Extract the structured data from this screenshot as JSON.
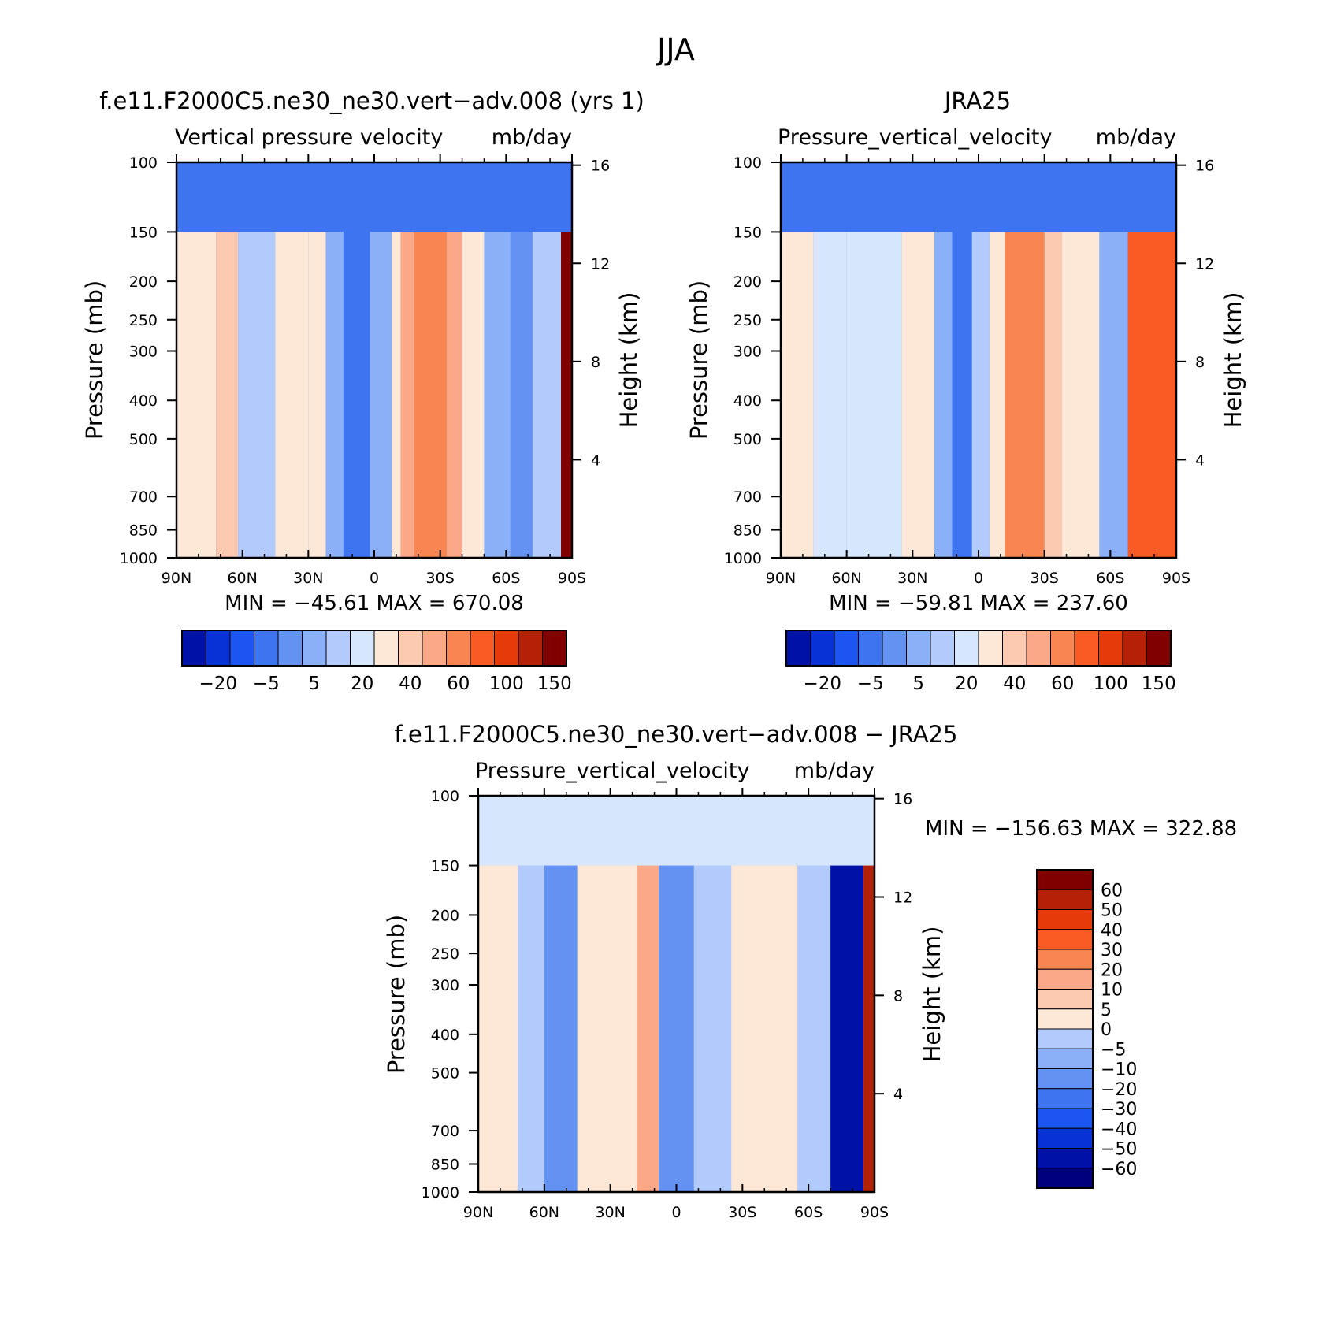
{
  "figure": {
    "title": "JJA"
  },
  "colors": {
    "blue_scale": [
      "#00007e",
      "#0011a8",
      "#0932d6",
      "#1d55f2",
      "#3e74f0",
      "#6492f2",
      "#8bb0f8",
      "#b2cbfc",
      "#d6e6fd"
    ],
    "red_scale": [
      "#fde8d8",
      "#fccab0",
      "#fba889",
      "#f98552",
      "#fa5a24",
      "#e63a0b",
      "#b52107",
      "#800000"
    ]
  },
  "chart_data": [
    {
      "type": "heatmap",
      "title": "f.e11.F2000C5.ne30_ne30.vert−adv.008 (yrs 1)",
      "subtitle": "Vertical pressure velocity",
      "units": "mb/day",
      "ylabel": "Pressure (mb)",
      "y2label": "Height (km)",
      "xticks": [
        "90N",
        "60N",
        "30N",
        "0",
        "30S",
        "60S",
        "90S"
      ],
      "yticks": [
        "100",
        "150",
        "200",
        "250",
        "300",
        "400",
        "500",
        "700",
        "850",
        "1000"
      ],
      "y2ticks": [
        "16",
        "12",
        "8",
        "4"
      ],
      "xlim": [
        90,
        -90
      ],
      "ylim": [
        1000,
        100
      ],
      "y_scale": "log",
      "stats": "MIN = −45.61   MAX = 670.08",
      "colorbar": {
        "orientation": "horizontal",
        "labels": [
          "−20",
          "−5",
          "5",
          "20",
          "40",
          "60",
          "100",
          "150"
        ]
      },
      "bands": [
        {
          "lat": [
            90,
            72
          ],
          "value": 2
        },
        {
          "lat": [
            72,
            62
          ],
          "value": 10
        },
        {
          "lat": [
            62,
            45
          ],
          "value": -5
        },
        {
          "lat": [
            45,
            30
          ],
          "value": 2
        },
        {
          "lat": [
            30,
            22
          ],
          "value": 5
        },
        {
          "lat": [
            22,
            14
          ],
          "value": -10
        },
        {
          "lat": [
            14,
            2
          ],
          "value": -30
        },
        {
          "lat": [
            2,
            -8
          ],
          "value": -10
        },
        {
          "lat": [
            -8,
            -12
          ],
          "value": 5
        },
        {
          "lat": [
            -12,
            -18
          ],
          "value": 20
        },
        {
          "lat": [
            -18,
            -33
          ],
          "value": 30
        },
        {
          "lat": [
            -33,
            -40
          ],
          "value": 20
        },
        {
          "lat": [
            -40,
            -50
          ],
          "value": 5
        },
        {
          "lat": [
            -50,
            -62
          ],
          "value": -10
        },
        {
          "lat": [
            -62,
            -72
          ],
          "value": -20
        },
        {
          "lat": [
            -72,
            -85
          ],
          "value": -5
        },
        {
          "lat": [
            -85,
            -90
          ],
          "value": 150
        }
      ]
    },
    {
      "type": "heatmap",
      "title": "JRA25",
      "subtitle": "Pressure_vertical_velocity",
      "units": "mb/day",
      "ylabel": "Pressure (mb)",
      "y2label": "Height (km)",
      "xticks": [
        "90N",
        "60N",
        "30N",
        "0",
        "30S",
        "60S",
        "90S"
      ],
      "yticks": [
        "100",
        "150",
        "200",
        "250",
        "300",
        "400",
        "500",
        "700",
        "850",
        "1000"
      ],
      "y2ticks": [
        "16",
        "12",
        "8",
        "4"
      ],
      "xlim": [
        90,
        -90
      ],
      "ylim": [
        1000,
        100
      ],
      "y_scale": "log",
      "stats": "MIN = −59.81   MAX = 237.60",
      "colorbar": {
        "orientation": "horizontal",
        "labels": [
          "−20",
          "−5",
          "5",
          "20",
          "40",
          "60",
          "100",
          "150"
        ]
      },
      "bands": [
        {
          "lat": [
            90,
            75
          ],
          "value": 2
        },
        {
          "lat": [
            75,
            60
          ],
          "value": -2
        },
        {
          "lat": [
            60,
            35
          ],
          "value": 0
        },
        {
          "lat": [
            35,
            20
          ],
          "value": 2
        },
        {
          "lat": [
            20,
            12
          ],
          "value": -10
        },
        {
          "lat": [
            12,
            3
          ],
          "value": -30
        },
        {
          "lat": [
            3,
            -5
          ],
          "value": -5
        },
        {
          "lat": [
            -5,
            -12
          ],
          "value": 5
        },
        {
          "lat": [
            -12,
            -30
          ],
          "value": 30
        },
        {
          "lat": [
            -30,
            -38
          ],
          "value": 10
        },
        {
          "lat": [
            -38,
            -55
          ],
          "value": 2
        },
        {
          "lat": [
            -55,
            -68
          ],
          "value": -10
        },
        {
          "lat": [
            -68,
            -90
          ],
          "value": 60
        }
      ]
    },
    {
      "type": "heatmap",
      "title": "f.e11.F2000C5.ne30_ne30.vert−adv.008 − JRA25",
      "subtitle": "Pressure_vertical_velocity",
      "units": "mb/day",
      "ylabel": "Pressure (mb)",
      "y2label": "Height (km)",
      "xticks": [
        "90N",
        "60N",
        "30N",
        "0",
        "30S",
        "60S",
        "90S"
      ],
      "yticks": [
        "100",
        "150",
        "200",
        "250",
        "300",
        "400",
        "500",
        "700",
        "850",
        "1000"
      ],
      "y2ticks": [
        "16",
        "12",
        "8",
        "4"
      ],
      "xlim": [
        90,
        -90
      ],
      "ylim": [
        1000,
        100
      ],
      "y_scale": "log",
      "stats": "MIN = −156.63   MAX = 322.88",
      "colorbar": {
        "orientation": "vertical",
        "labels": [
          "60",
          "50",
          "40",
          "30",
          "20",
          "10",
          "5",
          "0",
          "−5",
          "−10",
          "−20",
          "−30",
          "−40",
          "−50",
          "−60"
        ]
      },
      "bands": [
        {
          "lat": [
            90,
            72
          ],
          "value": 2
        },
        {
          "lat": [
            72,
            60
          ],
          "value": -3
        },
        {
          "lat": [
            60,
            45
          ],
          "value": -10
        },
        {
          "lat": [
            45,
            25
          ],
          "value": 3
        },
        {
          "lat": [
            25,
            18
          ],
          "value": 3
        },
        {
          "lat": [
            18,
            8
          ],
          "value": 15
        },
        {
          "lat": [
            8,
            -8
          ],
          "value": -10
        },
        {
          "lat": [
            -8,
            -25
          ],
          "value": -3
        },
        {
          "lat": [
            -25,
            -55
          ],
          "value": 2
        },
        {
          "lat": [
            -55,
            -70
          ],
          "value": -3
        },
        {
          "lat": [
            -70,
            -85
          ],
          "value": -55
        },
        {
          "lat": [
            -85,
            -90
          ],
          "value": 55
        }
      ]
    }
  ]
}
